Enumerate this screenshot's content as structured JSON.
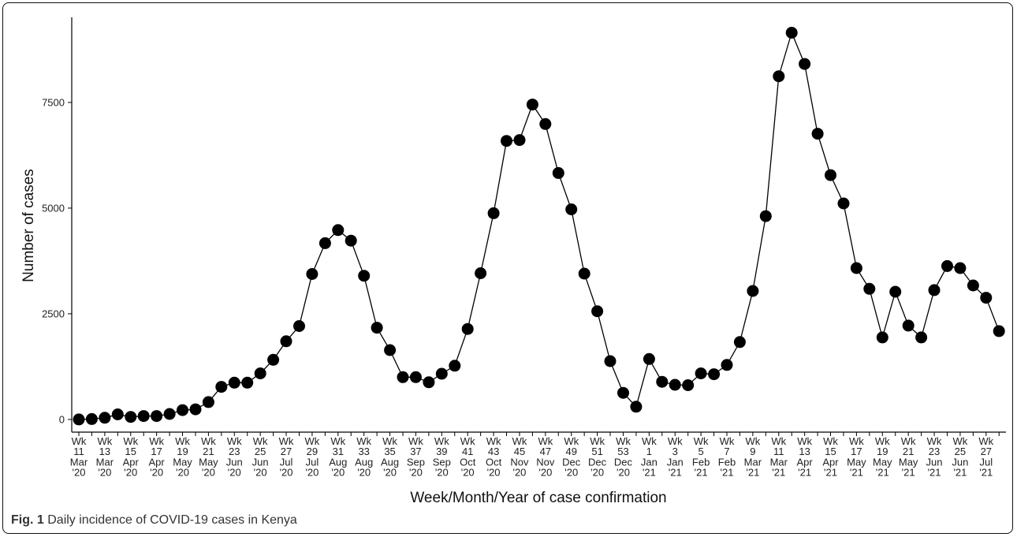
{
  "caption": {
    "fig_label": "Fig. 1",
    "text": "Daily incidence of COVID-19 cases in Kenya"
  },
  "chart_data": {
    "type": "line",
    "xlabel": "Week/Month/Year of case confirmation",
    "ylabel": "Number of cases",
    "ylim": [
      -300,
      9700
    ],
    "yticks": [
      0,
      2500,
      5000,
      7500
    ],
    "grid": false,
    "markers": "filled circles",
    "line_color": "#000000",
    "tick_labels": [
      [
        "Wk",
        "11",
        "Mar",
        "'20"
      ],
      [
        "Wk",
        "13",
        "Mar",
        "'20"
      ],
      [
        "Wk",
        "15",
        "Apr",
        "'20"
      ],
      [
        "Wk",
        "17",
        "Apr",
        "'20"
      ],
      [
        "Wk",
        "19",
        "May",
        "'20"
      ],
      [
        "Wk",
        "21",
        "May",
        "'20"
      ],
      [
        "Wk",
        "23",
        "Jun",
        "'20"
      ],
      [
        "Wk",
        "25",
        "Jun",
        "'20"
      ],
      [
        "Wk",
        "27",
        "Jul",
        "'20"
      ],
      [
        "Wk",
        "29",
        "Jul",
        "'20"
      ],
      [
        "Wk",
        "31",
        "Aug",
        "'20"
      ],
      [
        "Wk",
        "33",
        "Aug",
        "'20"
      ],
      [
        "Wk",
        "35",
        "Aug",
        "'20"
      ],
      [
        "Wk",
        "37",
        "Sep",
        "'20"
      ],
      [
        "Wk",
        "39",
        "Sep",
        "'20"
      ],
      [
        "Wk",
        "41",
        "Oct",
        "'20"
      ],
      [
        "Wk",
        "43",
        "Oct",
        "'20"
      ],
      [
        "Wk",
        "45",
        "Nov",
        "'20"
      ],
      [
        "Wk",
        "47",
        "Nov",
        "'20"
      ],
      [
        "Wk",
        "49",
        "Dec",
        "'20"
      ],
      [
        "Wk",
        "51",
        "Dec",
        "'20"
      ],
      [
        "Wk",
        "53",
        "Dec",
        "'20"
      ],
      [
        "Wk",
        "1",
        "Jan",
        "'21"
      ],
      [
        "Wk",
        "3",
        "Jan",
        "'21"
      ],
      [
        "Wk",
        "5",
        "Feb",
        "'21"
      ],
      [
        "Wk",
        "7",
        "Feb",
        "'21"
      ],
      [
        "Wk",
        "9",
        "Mar",
        "'21"
      ],
      [
        "Wk",
        "11",
        "Mar",
        "'21"
      ],
      [
        "Wk",
        "13",
        "Apr",
        "'21"
      ],
      [
        "Wk",
        "15",
        "Apr",
        "'21"
      ],
      [
        "Wk",
        "17",
        "May",
        "'21"
      ],
      [
        "Wk",
        "19",
        "May",
        "'21"
      ],
      [
        "Wk",
        "21",
        "May",
        "'21"
      ],
      [
        "Wk",
        "23",
        "Jun",
        "'21"
      ],
      [
        "Wk",
        "25",
        "Jun",
        "'21"
      ],
      [
        "Wk",
        "27",
        "Jul",
        "'21"
      ]
    ],
    "values": [
      0,
      10,
      40,
      120,
      60,
      80,
      80,
      130,
      220,
      240,
      410,
      770,
      870,
      870,
      1090,
      1410,
      1850,
      2210,
      3440,
      4170,
      4480,
      4230,
      3400,
      2170,
      1640,
      1000,
      1000,
      880,
      1080,
      1270,
      2140,
      3460,
      4880,
      6590,
      6610,
      7450,
      6990,
      5830,
      4970,
      3450,
      2560,
      1380,
      630,
      300,
      1430,
      890,
      820,
      810,
      1090,
      1070,
      1290,
      1830,
      3040,
      4810,
      8120,
      9150,
      8410,
      6760,
      5780,
      5110,
      3580,
      3090,
      1940,
      3020,
      2220,
      1940,
      3060,
      3630,
      3580,
      3170,
      2880,
      2090
    ]
  }
}
